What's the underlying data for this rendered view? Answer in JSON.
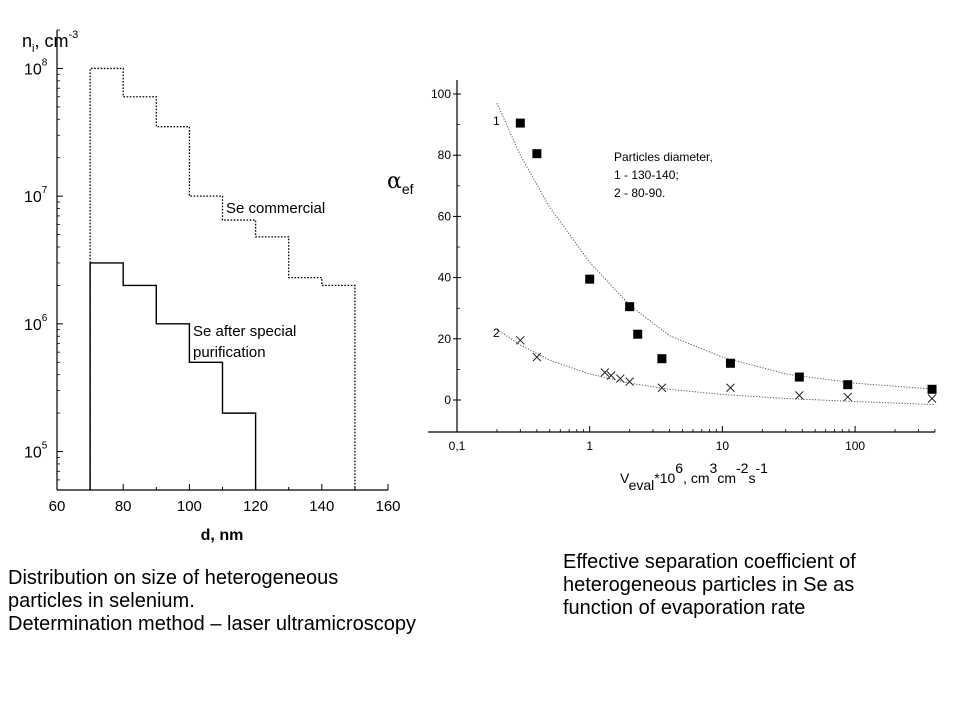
{
  "chart_data": [
    {
      "type": "line",
      "subtype": "step",
      "y_scale": "log",
      "ylabel": "n",
      "ylabel_sub": "i",
      "ylabel_unit": ", cm",
      "ylabel_unit_sup": "-3",
      "xlabel": "d, nm",
      "xlim": [
        60,
        160
      ],
      "ylim": [
        50000,
        200000000
      ],
      "x_ticks": [
        "60",
        "80",
        "100",
        "120",
        "140",
        "160"
      ],
      "y_ticks": [
        {
          "base": "10",
          "exp": "5",
          "value": 100000
        },
        {
          "base": "10",
          "exp": "6",
          "value": 1000000
        },
        {
          "base": "10",
          "exp": "7",
          "value": 10000000
        },
        {
          "base": "10",
          "exp": "8",
          "value": 100000000
        }
      ],
      "series": [
        {
          "name": "Se commercial",
          "label_lines": [
            "Se commercial"
          ],
          "style": "dotted",
          "steps": [
            {
              "x0": 70,
              "x1": 80,
              "y": 100000000
            },
            {
              "x0": 80,
              "x1": 90,
              "y": 60000000
            },
            {
              "x0": 90,
              "x1": 100,
              "y": 35000000
            },
            {
              "x0": 100,
              "x1": 110,
              "y": 10000000
            },
            {
              "x0": 110,
              "x1": 120,
              "y": 6500000
            },
            {
              "x0": 120,
              "x1": 130,
              "y": 4800000
            },
            {
              "x0": 130,
              "x1": 140,
              "y": 2300000
            },
            {
              "x0": 140,
              "x1": 150,
              "y": 2000000
            }
          ]
        },
        {
          "name": "Se after special purification",
          "label_lines": [
            "Se after special",
            "purification"
          ],
          "style": "solid",
          "steps": [
            {
              "x0": 70,
              "x1": 80,
              "y": 3000000
            },
            {
              "x0": 80,
              "x1": 90,
              "y": 2000000
            },
            {
              "x0": 90,
              "x1": 100,
              "y": 1000000
            },
            {
              "x0": 100,
              "x1": 110,
              "y": 500000
            },
            {
              "x0": 110,
              "x1": 120,
              "y": 200000
            }
          ]
        }
      ]
    },
    {
      "type": "scatter",
      "x_scale": "log",
      "ylabel_symbol": "α",
      "ylabel_sub": "ef",
      "xlabel_parts": {
        "v": "V",
        "v_sub": "eval",
        "mult": "*10",
        "mult_sup": "6",
        "unit": ", cm",
        "unit_sup": "3",
        "unit2": "cm",
        "unit2_sup": "-2",
        "unit3": "s",
        "unit3_sup": "-1"
      },
      "xlim": [
        0.1,
        400
      ],
      "ylim": [
        -10,
        105
      ],
      "x_ticks": [
        {
          "label": "0,1",
          "value": 0.1
        },
        {
          "label": "1",
          "value": 1
        },
        {
          "label": "10",
          "value": 10
        },
        {
          "label": "100",
          "value": 100
        }
      ],
      "y_ticks": [
        {
          "label": "0",
          "value": 0
        },
        {
          "label": "20",
          "value": 20
        },
        {
          "label": "40",
          "value": 40
        },
        {
          "label": "60",
          "value": 60
        },
        {
          "label": "80",
          "value": 80
        },
        {
          "label": "100",
          "value": 100
        }
      ],
      "legend_lines": [
        "Particles diameter,",
        "1 - 130-140;",
        "2 - 80-90."
      ],
      "series": [
        {
          "name": "1",
          "marker": "square",
          "points": [
            [
              0.3,
              90.5
            ],
            [
              0.4,
              80.5
            ],
            [
              1.0,
              39.5
            ],
            [
              2.0,
              30.5
            ],
            [
              2.3,
              21.5
            ],
            [
              3.5,
              13.5
            ],
            [
              11.5,
              12
            ],
            [
              38,
              7.5
            ],
            [
              88,
              5
            ],
            [
              380,
              3.5
            ]
          ],
          "fit": [
            [
              0.2,
              97
            ],
            [
              0.3,
              80
            ],
            [
              0.5,
              63
            ],
            [
              1,
              45
            ],
            [
              2,
              31
            ],
            [
              4,
              21
            ],
            [
              10,
              14
            ],
            [
              30,
              8.5
            ],
            [
              100,
              5.5
            ],
            [
              400,
              3.5
            ]
          ]
        },
        {
          "name": "2",
          "marker": "x",
          "points": [
            [
              0.3,
              19.5
            ],
            [
              0.4,
              14
            ],
            [
              1.3,
              9
            ],
            [
              1.45,
              8
            ],
            [
              1.7,
              7
            ],
            [
              2.0,
              6
            ],
            [
              3.5,
              4
            ],
            [
              11.5,
              4
            ],
            [
              38,
              1.5
            ],
            [
              88,
              1
            ],
            [
              380,
              0.5
            ]
          ],
          "fit": [
            [
              0.2,
              23
            ],
            [
              0.3,
              18
            ],
            [
              0.5,
              13
            ],
            [
              1,
              8.5
            ],
            [
              2,
              5.5
            ],
            [
              4,
              3.5
            ],
            [
              10,
              1.8
            ],
            [
              30,
              0.5
            ],
            [
              100,
              -0.5
            ],
            [
              400,
              -1.5
            ]
          ]
        }
      ]
    }
  ],
  "captions": {
    "left": [
      "Distribution on size of heterogeneous",
      "particles in selenium.",
      "Determination method – laser ultramicroscopy"
    ],
    "right": [
      "Effective separation coefficient of",
      "heterogeneous particles in Se as",
      "function of evaporation rate"
    ]
  }
}
